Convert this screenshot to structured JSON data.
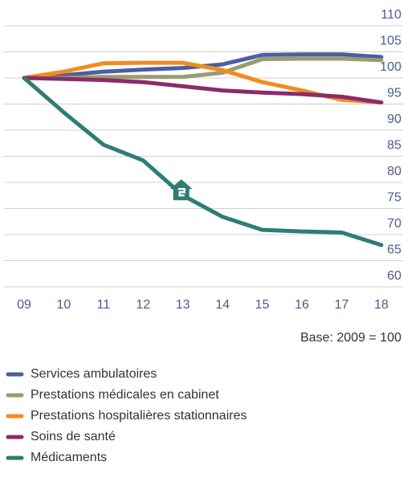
{
  "chart_data": {
    "type": "line",
    "note": "Base: 2009 = 100",
    "categories": [
      "09",
      "10",
      "11",
      "12",
      "13",
      "14",
      "15",
      "16",
      "17",
      "18"
    ],
    "series": [
      {
        "name": "Services ambulatoires",
        "color": "#4a5ea3",
        "values": [
          100,
          100.5,
          101.2,
          101.6,
          101.9,
          102.6,
          104.4,
          104.5,
          104.5,
          104.0
        ]
      },
      {
        "name": "Prestations médicales en cabinet",
        "color": "#9c9b70",
        "values": [
          100,
          100,
          100.2,
          100.2,
          100.2,
          101.0,
          103.6,
          103.7,
          103.7,
          103.4
        ]
      },
      {
        "name": "Prestations hospitalières stationnaires",
        "color": "#f28c1e",
        "values": [
          100,
          101.2,
          102.8,
          102.9,
          102.9,
          101.5,
          99.2,
          97.6,
          95.8,
          95.3
        ]
      },
      {
        "name": "Soins de santé",
        "color": "#8c2b6b",
        "values": [
          100,
          99.8,
          99.6,
          99.2,
          98.4,
          97.6,
          97.2,
          96.9,
          96.4,
          95.3
        ]
      },
      {
        "name": "Médicaments",
        "color": "#2e7d72",
        "values": [
          100,
          93.4,
          87.2,
          84.2,
          77.5,
          73.4,
          70.9,
          70.6,
          70.4,
          68.0
        ]
      }
    ],
    "ylim": [
      60,
      110
    ],
    "yticks": [
      60,
      65,
      70,
      75,
      80,
      85,
      90,
      95,
      100,
      105,
      110
    ],
    "grid": true,
    "legend": "bottom"
  }
}
